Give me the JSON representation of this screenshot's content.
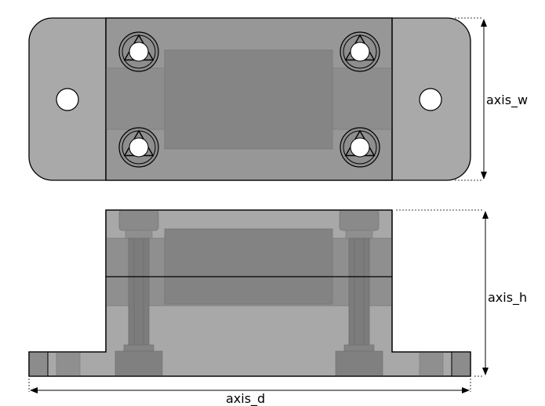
{
  "labels": {
    "axis_w": "axis_w",
    "axis_h": "axis_h",
    "axis_d": "axis_d"
  },
  "colors": {
    "plate": "#a9a9a9",
    "body": "#9a9a9a",
    "cylinder": "#8c8c8c",
    "cylinder_dark": "#7e7e7e",
    "outline": "#000000",
    "hole": "#ffffff"
  }
}
